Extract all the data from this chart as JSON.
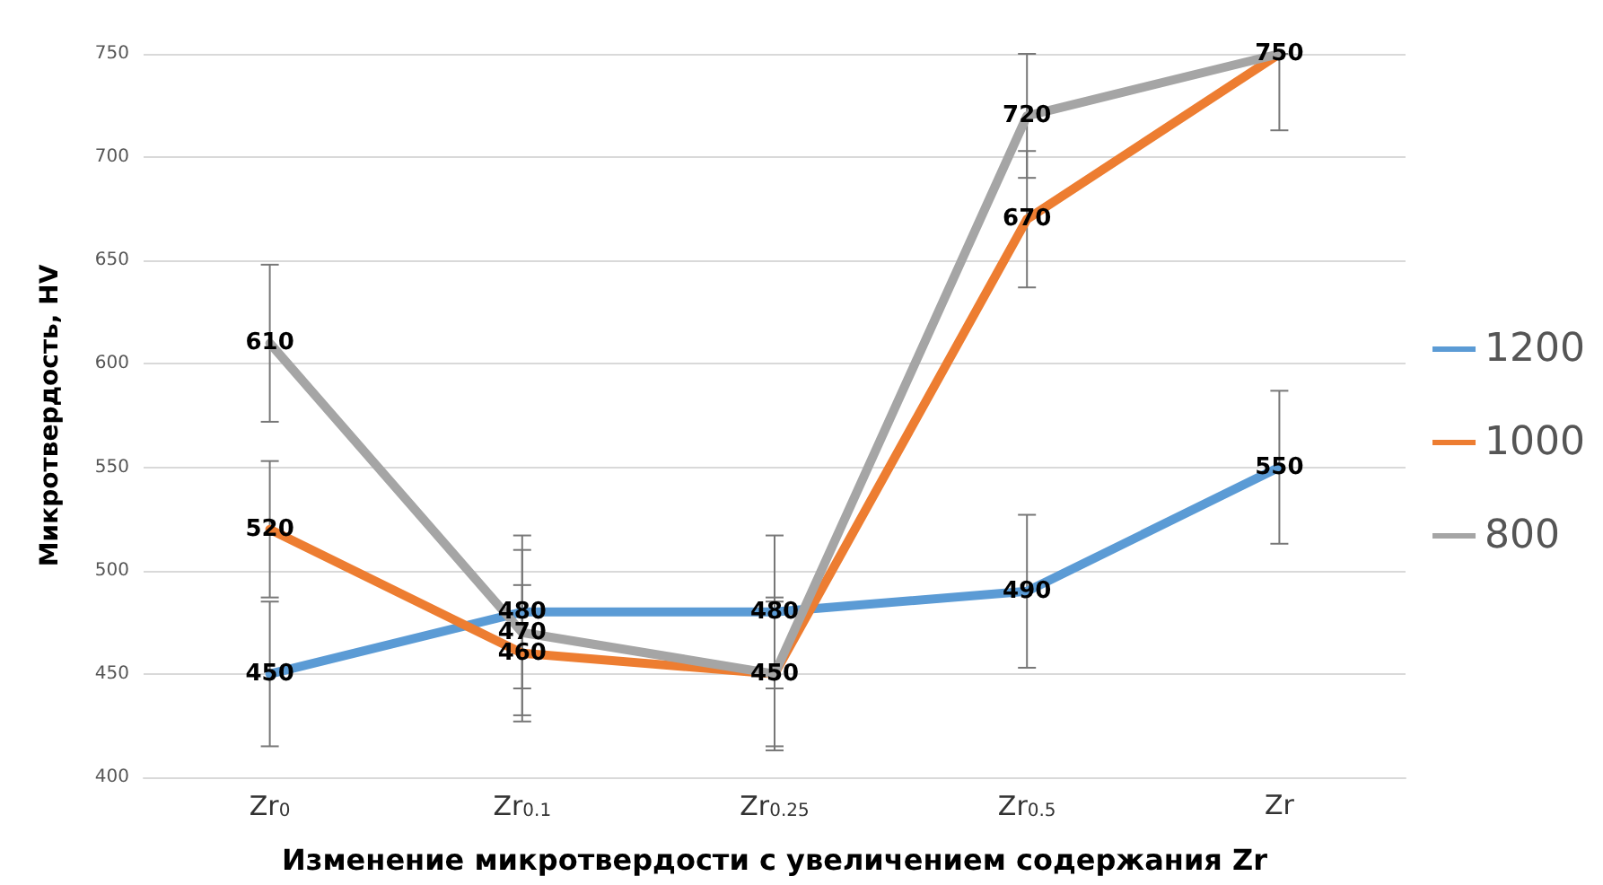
{
  "chart_data": {
    "type": "line",
    "xlabel": "Изменение микротвердости с увеличением содержания Zr",
    "ylabel": "Микротвердость, HV",
    "categories": [
      "Zr$_{0}$",
      "Zr$_{0.1}$",
      "Zr$_{0.25}$",
      "Zr$_{0.5}$",
      "Zr"
    ],
    "series": [
      {
        "name": "1200",
        "color": "#5b9bd5",
        "values": [
          450,
          480,
          480,
          490,
          550
        ],
        "errors": [
          35,
          37,
          37,
          37,
          37
        ]
      },
      {
        "name": "1000",
        "color": "#ed7d31",
        "values": [
          520,
          460,
          450,
          670,
          750
        ],
        "errors": [
          33,
          33,
          35,
          33,
          null
        ]
      },
      {
        "name": "800",
        "color": "#a5a5a5",
        "values": [
          610,
          470,
          450,
          720,
          750
        ],
        "value_labels": [
          "610",
          "470",
          null,
          "720",
          null
        ],
        "errors": [
          38,
          40,
          37,
          30,
          [
            713,
            750
          ]
        ]
      }
    ],
    "ylim": [
      400,
      750
    ],
    "yticks": [
      400,
      450,
      500,
      550,
      600,
      650,
      700,
      750
    ],
    "grid": "y",
    "legend": "right",
    "marker": "none",
    "data_labels": true
  }
}
